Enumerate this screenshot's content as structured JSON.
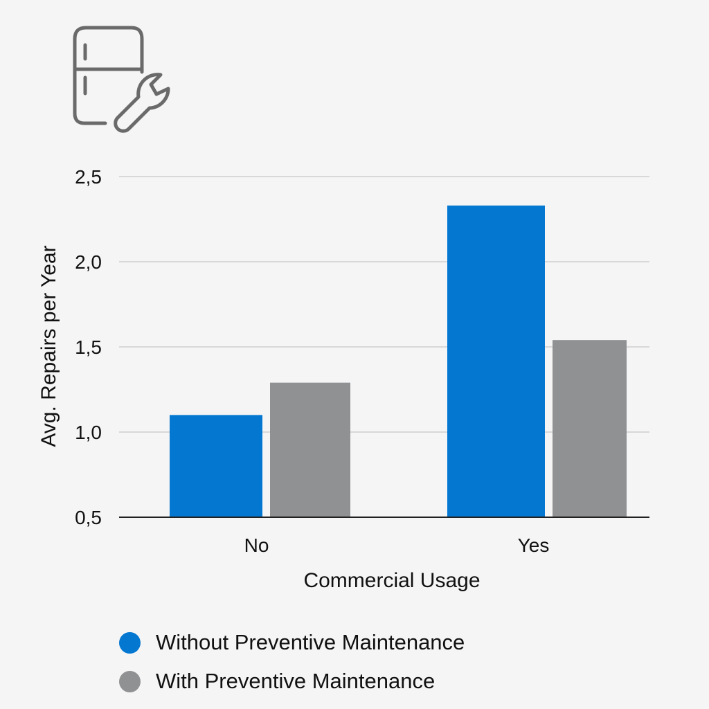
{
  "icon": "refrigerator-wrench-icon",
  "colors": {
    "without": "#0477d1",
    "with": "#909193",
    "grid": "#cfcfcf",
    "axis": "#222222"
  },
  "chart_data": {
    "type": "bar",
    "categories": [
      "No",
      "Yes"
    ],
    "xlabel": "Commercial Usage",
    "ylabel": "Avg. Repairs per Year",
    "ylim": [
      0.5,
      2.5
    ],
    "yticks": [
      "0,5",
      "1,0",
      "1,5",
      "2,0",
      "2,5"
    ],
    "grid": true,
    "legend_position": "bottom",
    "series": [
      {
        "name": "Without Preventive Maintenance",
        "values": [
          1.1,
          2.33
        ]
      },
      {
        "name": "With Preventive Maintenance",
        "values": [
          1.29,
          1.54
        ]
      }
    ]
  }
}
